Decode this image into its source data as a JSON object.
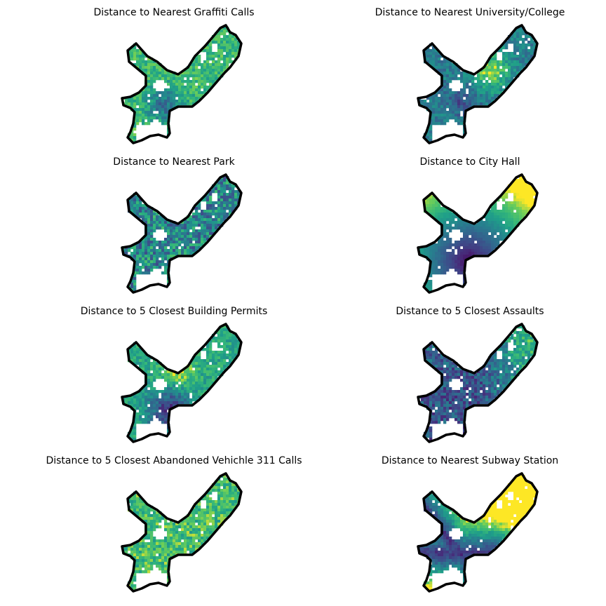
{
  "colormap": {
    "name": "viridis",
    "low": "#440154",
    "mid": "#21918c",
    "high": "#fde725"
  },
  "boundary_color": "#000000",
  "panels": [
    {
      "title": "Distance to Nearest Graffiti Calls",
      "pattern": "graffiti"
    },
    {
      "title": "Distance to Nearest University/College",
      "pattern": "university"
    },
    {
      "title": "Distance to Nearest Park",
      "pattern": "park"
    },
    {
      "title": "Distance to City Hall",
      "pattern": "cityhall"
    },
    {
      "title": "Distance to 5 Closest Building Permits",
      "pattern": "permits"
    },
    {
      "title": "Distance to 5 Closest Assaults",
      "pattern": "assaults"
    },
    {
      "title": "Distance to 5 Closest Abandoned Vehichle 311 Calls",
      "pattern": "abandoned"
    },
    {
      "title": "Distance to Nearest Subway Station",
      "pattern": "subway"
    }
  ]
}
